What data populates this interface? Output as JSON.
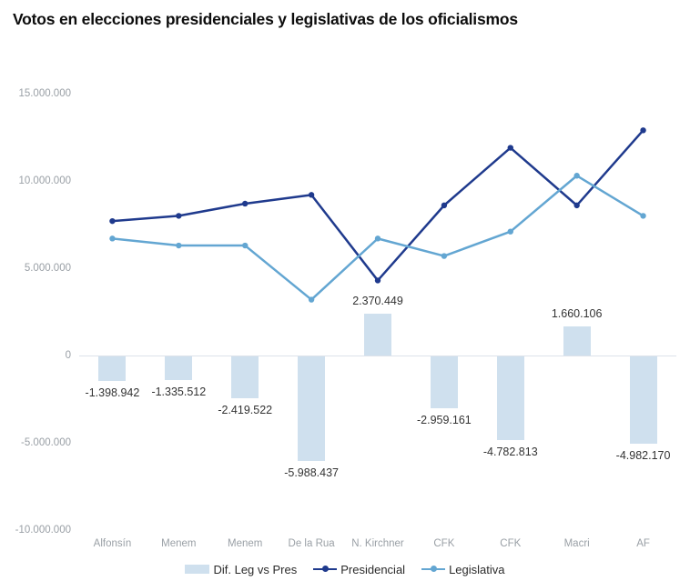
{
  "title": "Votos en elecciones presidenciales y legislativas de los oficialismos",
  "colors": {
    "background": "#ffffff",
    "title_text": "#0d0d0d",
    "bar_fill": "#cfe0ee",
    "presidencial_line": "#1f3a8d",
    "legislativa_line": "#63a6d2",
    "axis_tick_text": "#9aa0a6",
    "bar_value_text": "#333333",
    "zero_line": "#dde3ea"
  },
  "legend": {
    "items": [
      {
        "label": "Dif. Leg vs Pres",
        "swatch": "bar",
        "color": "#cfe0ee"
      },
      {
        "label": "Presidencial",
        "swatch": "line",
        "color": "#1f3a8d"
      },
      {
        "label": "Legislativa",
        "swatch": "line",
        "color": "#63a6d2"
      }
    ]
  },
  "chart_data": {
    "type": "bar+line combo",
    "title": "Votos en elecciones presidenciales y legislativas de los oficialismos",
    "categories": [
      "Alfonsín",
      "Menem",
      "Menem",
      "De la Rua",
      "N. Kirchner",
      "CFK",
      "CFK",
      "Macri",
      "AF"
    ],
    "series": [
      {
        "name": "Dif. Leg vs Pres",
        "type": "bar",
        "color": "#cfe0ee",
        "values": [
          -1398942,
          -1335512,
          -2419522,
          -5988437,
          2370449,
          -2959161,
          -4782813,
          1660106,
          -4982170
        ],
        "labels": [
          "-1.398.942",
          "-1.335.512",
          "-2.419.522",
          "-5.988.437",
          "2.370.449",
          "-2.959.161",
          "-4.782.813",
          "1.660.106",
          "-4.982.170"
        ]
      },
      {
        "name": "Presidencial",
        "type": "line",
        "color": "#1f3a8d",
        "values": [
          7700000,
          8000000,
          8700000,
          9200000,
          4300000,
          8600000,
          11900000,
          8600000,
          12900000
        ]
      },
      {
        "name": "Legislativa",
        "type": "line",
        "color": "#63a6d2",
        "values": [
          6700000,
          6300000,
          6300000,
          3200000,
          6700000,
          5700000,
          7100000,
          10300000,
          8000000
        ]
      }
    ],
    "ylim": [
      -10000000,
      15000000
    ],
    "y_tick_values": [
      15000000,
      10000000,
      5000000,
      0,
      -5000000,
      -10000000
    ],
    "y_ticks": [
      "15.000.000",
      "10.000.000",
      "5.000.000",
      "0",
      "-5.000.000",
      "-10.000.000"
    ],
    "grid": false,
    "legend_position": "bottom"
  }
}
